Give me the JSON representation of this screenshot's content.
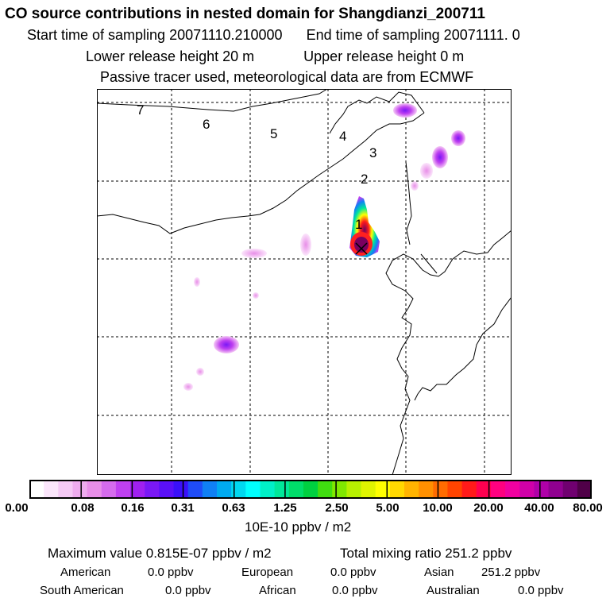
{
  "header": {
    "title": "CO  source contributions in nested domain for Shangdianzi_200711",
    "start_label": "Start time of sampling 20071110.210000",
    "end_label": "End time of sampling 20071111.     0",
    "lower_release": "Lower release height   20 m",
    "upper_release": "Upper release height    0 m",
    "tracer_note": "Passive tracer used, meteorological data are from ECMWF"
  },
  "map": {
    "trajectory_labels": [
      "7",
      "6",
      "5",
      "4",
      "3",
      "2",
      "1"
    ],
    "receptor_marker": "receptor-x"
  },
  "colorbar": {
    "colors": [
      "#ffffff",
      "#fbe6fb",
      "#f5c9f5",
      "#eeabee",
      "#e88ee8",
      "#d56bed",
      "#bf40f0",
      "#a020f0",
      "#7a18f5",
      "#5a10f8",
      "#3a10fa",
      "#1f4cf8",
      "#1080f5",
      "#00aaf0",
      "#00d8f0",
      "#00ffff",
      "#00f0c8",
      "#00e89a",
      "#00dd6a",
      "#00d040",
      "#40dd10",
      "#80e800",
      "#b8f000",
      "#e0f500",
      "#ffff00",
      "#ffd800",
      "#ffb400",
      "#ff9000",
      "#ff6c00",
      "#ff4400",
      "#ff1a1a",
      "#ff0050",
      "#ff0080",
      "#f000a0",
      "#d000a8",
      "#b000a8",
      "#900090",
      "#700070",
      "#500048"
    ],
    "tick_labels": [
      "0.00",
      "0.08",
      "0.16",
      "0.31",
      "0.63",
      "1.25",
      "2.50",
      "5.00",
      "10.00",
      "20.00",
      "40.00",
      "80.00"
    ],
    "units": "10E-10 ppbv / m2"
  },
  "stats": {
    "maximum": "Maximum value  0.815E-07 ppbv / m2",
    "total": "Total mixing ratio      251.2 ppbv",
    "american": "American",
    "american_val": "0.0 ppbv",
    "european": "European",
    "european_val": "0.0 ppbv",
    "asian": "Asian",
    "asian_val": "251.2 ppbv",
    "south_american": "South American",
    "south_american_val": "0.0 ppbv",
    "african": "African",
    "african_val": "0.0 ppbv",
    "australian": "Australian",
    "australian_val": "0.0 ppbv"
  }
}
